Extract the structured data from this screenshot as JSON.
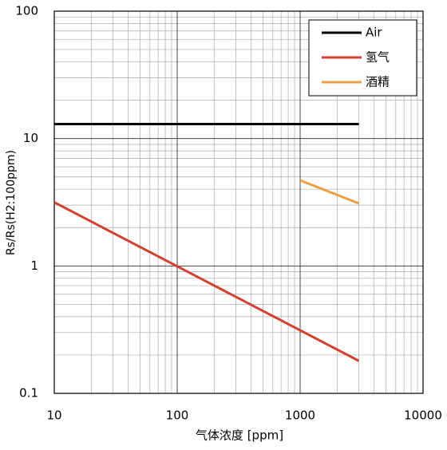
{
  "chart_data": {
    "type": "line",
    "x_label": "气体浓度 [ppm]",
    "y_label": "Rs/Rs(H2:100ppm)",
    "x_log": true,
    "y_log": true,
    "grid": true,
    "minor_grid": true,
    "legend": "upper right",
    "xlim": [
      10,
      10000
    ],
    "xticks": [
      10,
      100,
      1000,
      10000
    ],
    "ylim": [
      0.1,
      100
    ],
    "yticks": [
      0.1,
      1,
      10,
      100
    ],
    "series": [
      {
        "name": "Air",
        "color": "#000000",
        "x": [
          10,
          3000
        ],
        "values": [
          13,
          13
        ]
      },
      {
        "name": "氢气",
        "color": "#d2402f",
        "x": [
          10,
          3000
        ],
        "values": [
          3.16,
          0.18
        ]
      },
      {
        "name": "酒精",
        "color": "#e8a040",
        "x": [
          1000,
          3000
        ],
        "values": [
          4.7,
          3.1
        ]
      }
    ]
  }
}
